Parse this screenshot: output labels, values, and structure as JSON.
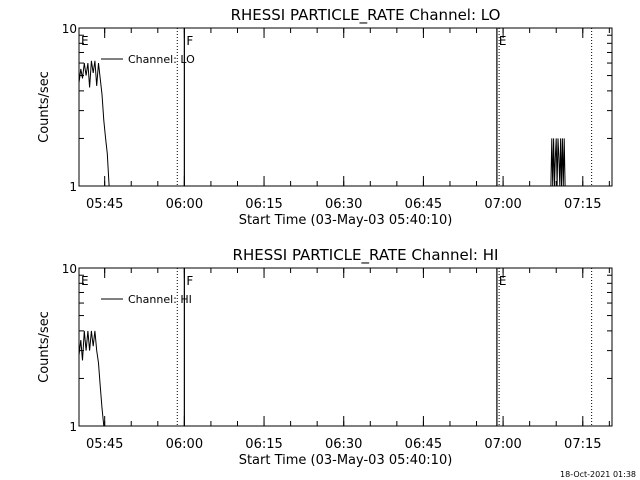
{
  "footer": {
    "timestamp": "18-Oct-2021 01:38"
  },
  "chart_data": [
    {
      "type": "line",
      "title": "RHESSI PARTICLE_RATE Channel: LO",
      "xlabel": "Start Time (03-May-03 05:40:10)",
      "ylabel": "Counts/sec",
      "yscale": "log",
      "ylim": [
        1,
        10
      ],
      "xlim": [
        "05:40:10",
        "07:20:30"
      ],
      "y_ticks": [
        {
          "value": 1,
          "label": "1"
        },
        {
          "value": 10,
          "label": "10"
        }
      ],
      "x_ticks": [
        {
          "time": "05:45",
          "label": "05:45"
        },
        {
          "time": "06:00",
          "label": "06:00"
        },
        {
          "time": "06:15",
          "label": "06:15"
        },
        {
          "time": "06:30",
          "label": "06:30"
        },
        {
          "time": "06:45",
          "label": "06:45"
        },
        {
          "time": "07:00",
          "label": "07:00"
        },
        {
          "time": "07:15",
          "label": "07:15"
        }
      ],
      "legend": {
        "position": "top-left",
        "label": "Channel: LO"
      },
      "annotations": [
        {
          "label": "E",
          "time": "05:40:10",
          "style": "none"
        },
        {
          "label": "F",
          "time": "06:00:00",
          "style": "solid"
        },
        {
          "label": "",
          "time": "05:58:40",
          "style": "dotted"
        },
        {
          "label": "E",
          "time": "06:58:50",
          "style": "solid"
        },
        {
          "label": "",
          "time": "06:59:15",
          "style": "dotted"
        },
        {
          "label": "",
          "time": "07:16:40",
          "style": "dotted"
        }
      ],
      "series": [
        {
          "segments": [
            [
              [
                "05:40:10",
                4.5
              ],
              [
                "05:40:30",
                5.5
              ],
              [
                "05:40:50",
                4.8
              ],
              [
                "05:41:10",
                6.0
              ],
              [
                "05:41:30",
                5.0
              ],
              [
                "05:41:50",
                6.0
              ],
              [
                "05:42:10",
                4.2
              ],
              [
                "05:42:30",
                6.2
              ],
              [
                "05:42:50",
                5.2
              ],
              [
                "05:43:10",
                6.2
              ],
              [
                "05:43:30",
                4.3
              ],
              [
                "05:43:50",
                6.0
              ],
              [
                "05:44:10",
                4.8
              ],
              [
                "05:44:30",
                3.8
              ],
              [
                "05:44:50",
                2.6
              ],
              [
                "05:45:10",
                2.0
              ],
              [
                "05:45:30",
                1.6
              ],
              [
                "05:45:50",
                1.0
              ]
            ],
            [
              [
                "07:09:00",
                1.0
              ],
              [
                "07:09:10",
                2.0
              ],
              [
                "07:09:20",
                1.0
              ],
              [
                "07:09:30",
                2.0
              ],
              [
                "07:09:40",
                1.0
              ],
              [
                "07:09:50",
                1.5
              ],
              [
                "07:10:00",
                2.0
              ],
              [
                "07:10:10",
                1.0
              ],
              [
                "07:10:20",
                2.0
              ],
              [
                "07:10:30",
                1.5
              ],
              [
                "07:10:40",
                1.0
              ],
              [
                "07:10:50",
                2.0
              ],
              [
                "07:11:00",
                1.0
              ],
              [
                "07:11:10",
                2.0
              ],
              [
                "07:11:20",
                1.0
              ],
              [
                "07:11:30",
                2.0
              ],
              [
                "07:11:40",
                1.0
              ]
            ]
          ]
        }
      ]
    },
    {
      "type": "line",
      "title": "RHESSI PARTICLE_RATE Channel: HI",
      "xlabel": "Start Time (03-May-03 05:40:10)",
      "ylabel": "Counts/sec",
      "yscale": "log",
      "ylim": [
        1,
        10
      ],
      "xlim": [
        "05:40:10",
        "07:20:30"
      ],
      "y_ticks": [
        {
          "value": 1,
          "label": "1"
        },
        {
          "value": 10,
          "label": "10"
        }
      ],
      "x_ticks": [
        {
          "time": "05:45",
          "label": "05:45"
        },
        {
          "time": "06:00",
          "label": "06:00"
        },
        {
          "time": "06:15",
          "label": "06:15"
        },
        {
          "time": "06:30",
          "label": "06:30"
        },
        {
          "time": "06:45",
          "label": "06:45"
        },
        {
          "time": "07:00",
          "label": "07:00"
        },
        {
          "time": "07:15",
          "label": "07:15"
        }
      ],
      "legend": {
        "position": "top-left",
        "label": "Channel: HI"
      },
      "annotations": [
        {
          "label": "E",
          "time": "05:40:10",
          "style": "none"
        },
        {
          "label": "F",
          "time": "06:00:00",
          "style": "solid"
        },
        {
          "label": "",
          "time": "05:58:40",
          "style": "dotted"
        },
        {
          "label": "E",
          "time": "06:58:50",
          "style": "solid"
        },
        {
          "label": "",
          "time": "06:59:15",
          "style": "dotted"
        },
        {
          "label": "",
          "time": "07:16:40",
          "style": "dotted"
        }
      ],
      "series": [
        {
          "segments": [
            [
              [
                "05:40:10",
                2.8
              ],
              [
                "05:40:30",
                3.5
              ],
              [
                "05:40:50",
                2.6
              ],
              [
                "05:41:10",
                4.0
              ],
              [
                "05:41:30",
                3.0
              ],
              [
                "05:41:50",
                4.0
              ],
              [
                "05:42:10",
                3.0
              ],
              [
                "05:42:30",
                4.0
              ],
              [
                "05:42:50",
                3.2
              ],
              [
                "05:43:10",
                4.0
              ],
              [
                "05:43:30",
                3.0
              ],
              [
                "05:43:50",
                2.5
              ],
              [
                "05:44:10",
                1.8
              ],
              [
                "05:44:30",
                1.3
              ],
              [
                "05:44:50",
                1.0
              ]
            ]
          ]
        }
      ]
    }
  ]
}
